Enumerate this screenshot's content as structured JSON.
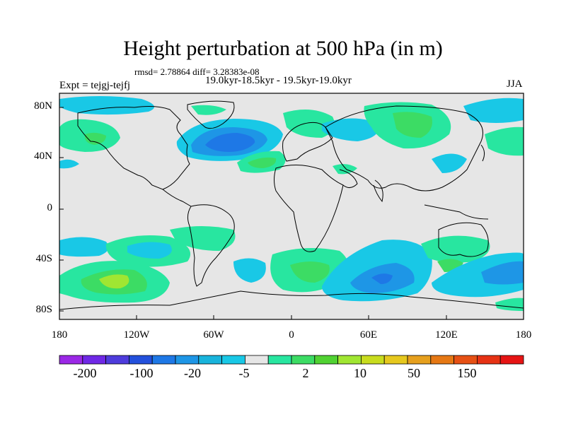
{
  "title": "Height perturbation at 500 hPa (in m)",
  "stats": "rmsd= 2.78864 diff= 3.28383e-08",
  "period": "19.0kyr-18.5kyr - 19.5kyr-19.0kyr",
  "expt": "Expt = tejgj-tejfj",
  "season": "JJA",
  "lat_labels": [
    "80N",
    "40N",
    "0",
    "40S",
    "80S"
  ],
  "lon_labels": [
    "180",
    "120W",
    "60W",
    "0",
    "60E",
    "120E",
    "180"
  ],
  "colorbar": {
    "labels": [
      "-200",
      "-100",
      "-20",
      "-5",
      "2",
      "10",
      "50",
      "150"
    ],
    "colors": [
      "#9b28e6",
      "#6f28e6",
      "#4e3cdc",
      "#2350dc",
      "#1e78e6",
      "#1e96e6",
      "#19b4dc",
      "#19c8e6",
      "#e6e6e6",
      "#28e6a0",
      "#3cdc64",
      "#50d232",
      "#a0e632",
      "#c8dc1e",
      "#e6c81e",
      "#e6a01e",
      "#e67814",
      "#e65014",
      "#e63214",
      "#e61414"
    ]
  },
  "colors": {
    "background": "#e6e6e6",
    "green": "#28e6a0",
    "green2": "#3cdc64",
    "lightblue": "#19c8e6",
    "blue": "#1e96e6",
    "darkblue": "#1e78e6",
    "yellowgreen": "#a0e632"
  }
}
